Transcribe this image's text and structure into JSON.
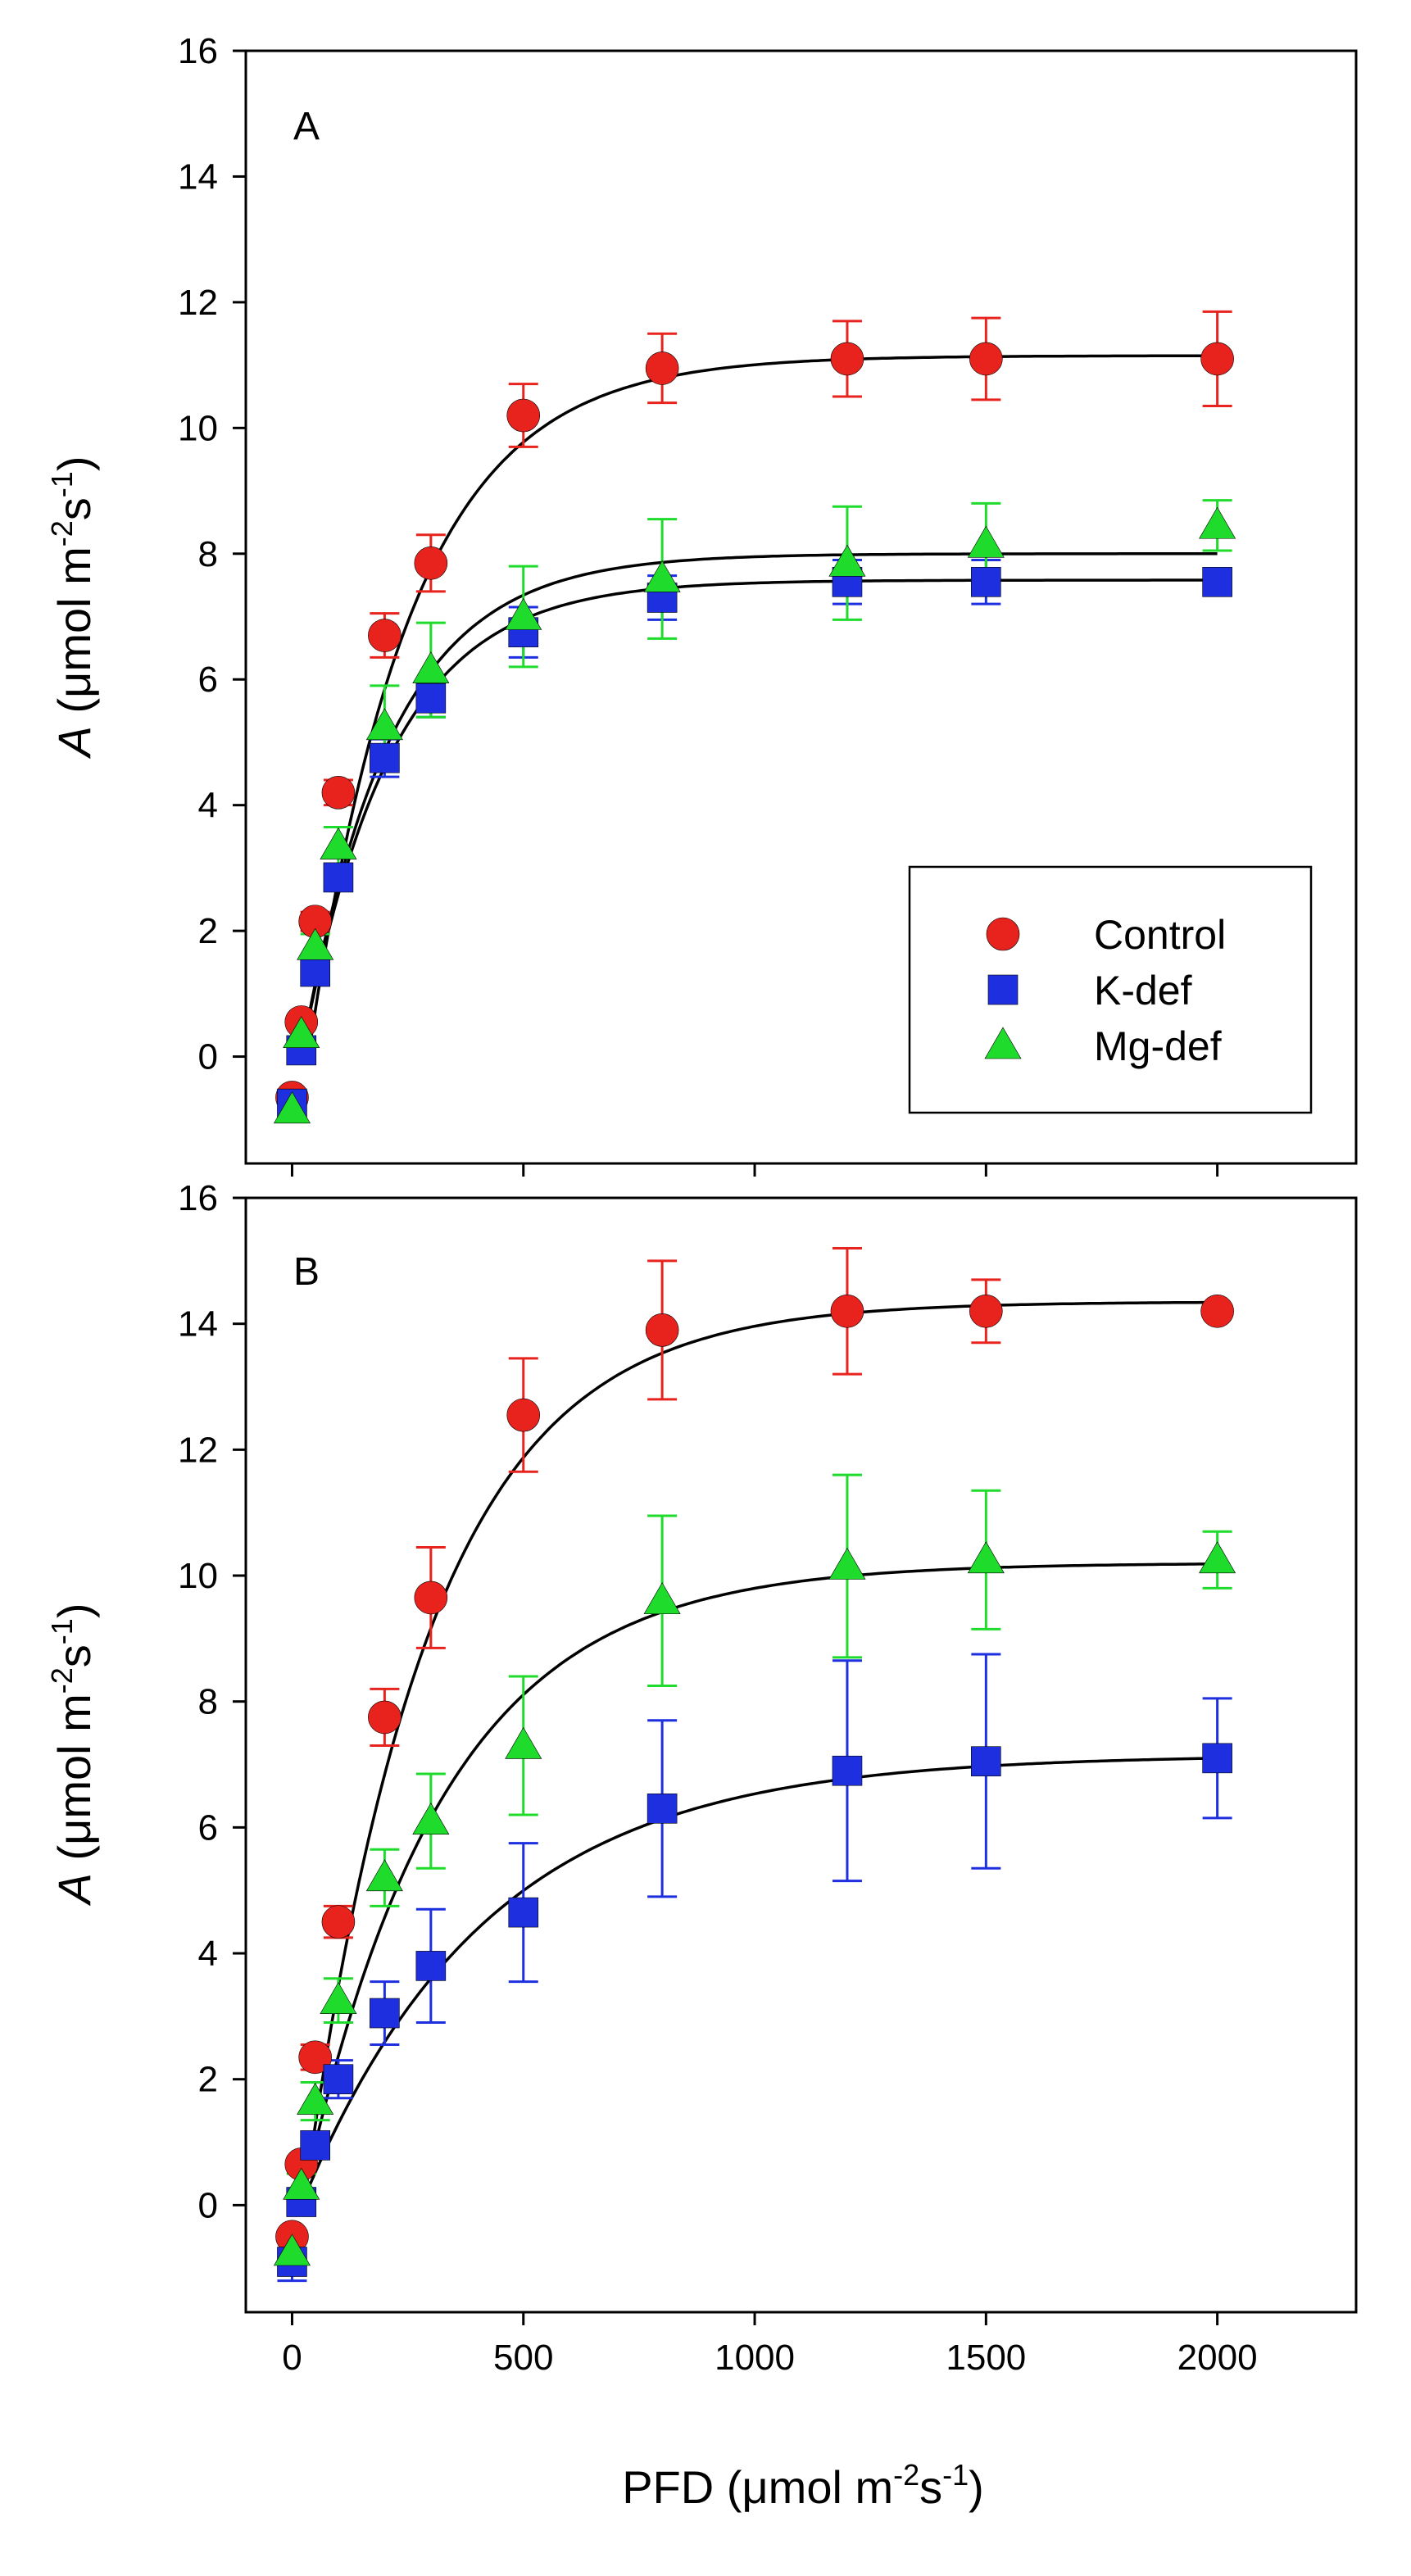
{
  "colors": {
    "control": "#e8231d",
    "kdef": "#1e2fe0",
    "mgdef": "#1fdc2c",
    "fit": "#000000"
  },
  "labels": {
    "xlabel_prefix": "PFD (",
    "ylabel_prefix": " (",
    "mu": "μ",
    "mol_m": "mol m",
    "exp_neg2": "-2",
    "s": "s",
    "exp_neg1": "-1",
    "close_paren": ")"
  },
  "chart_data": [
    {
      "type": "scatter",
      "panel": "A",
      "title": "",
      "xlabel": "PFD (μmol m-2s-1)",
      "ylabel": "A (μmol m-2s-1)",
      "xlim": [
        -100,
        2300
      ],
      "ylim": [
        -1.7,
        16
      ],
      "yticks": [
        0,
        2,
        4,
        6,
        8,
        10,
        12,
        14,
        16
      ],
      "xticks": [
        0,
        500,
        1000,
        1500,
        2000
      ],
      "show_x_tick_labels": false,
      "legend": {
        "position": "bottom-right",
        "entries": [
          "Control",
          "K-def",
          "Mg-def"
        ]
      },
      "series": [
        {
          "name": "Control",
          "key": "control",
          "marker": "circle",
          "x": [
            0,
            20,
            50,
            100,
            200,
            300,
            500,
            800,
            1200,
            1500,
            2000
          ],
          "y": [
            -0.65,
            0.55,
            2.15,
            4.2,
            6.7,
            7.85,
            10.2,
            10.95,
            11.1,
            11.1,
            11.1
          ],
          "err": [
            0.1,
            0.1,
            0.15,
            0.2,
            0.35,
            0.45,
            0.5,
            0.55,
            0.6,
            0.65,
            0.75
          ],
          "fit": {
            "amax": 11.15,
            "k": 0.0045,
            "x0": 35
          }
        },
        {
          "name": "K-def",
          "key": "kdef",
          "marker": "square",
          "x": [
            0,
            20,
            50,
            100,
            200,
            300,
            500,
            800,
            1200,
            1500,
            2000
          ],
          "y": [
            -0.75,
            0.1,
            1.35,
            2.85,
            4.75,
            5.7,
            6.75,
            7.3,
            7.55,
            7.55,
            7.55
          ],
          "err": [
            0.1,
            0.1,
            0.15,
            0.2,
            0.3,
            0.3,
            0.4,
            0.35,
            0.35,
            0.35,
            0.15
          ],
          "fit": {
            "amax": 7.58,
            "k": 0.0052,
            "x0": 20
          }
        },
        {
          "name": "Mg-def",
          "key": "mgdef",
          "marker": "triangle",
          "x": [
            0,
            20,
            50,
            100,
            200,
            300,
            500,
            800,
            1200,
            1500,
            2000
          ],
          "y": [
            -0.85,
            0.35,
            1.75,
            3.35,
            5.25,
            6.15,
            7.0,
            7.6,
            7.85,
            8.15,
            8.45
          ],
          "err": [
            0.1,
            0.15,
            0.2,
            0.3,
            0.65,
            0.75,
            0.8,
            0.95,
            0.9,
            0.65,
            0.4
          ],
          "fit": {
            "amax": 8.0,
            "k": 0.0052,
            "x0": 20
          }
        }
      ]
    },
    {
      "type": "scatter",
      "panel": "B",
      "title": "",
      "xlabel": "PFD (μmol m-2s-1)",
      "ylabel": "A (μmol m-2s-1)",
      "xlim": [
        -100,
        2300
      ],
      "ylim": [
        -1.7,
        16
      ],
      "yticks": [
        0,
        2,
        4,
        6,
        8,
        10,
        12,
        14,
        16
      ],
      "xticks": [
        0,
        500,
        1000,
        1500,
        2000
      ],
      "xticklabels": [
        "0",
        "500",
        "1000",
        "1500",
        "2000"
      ],
      "show_x_tick_labels": true,
      "series": [
        {
          "name": "Control",
          "key": "control",
          "marker": "circle",
          "x": [
            0,
            20,
            50,
            100,
            200,
            300,
            500,
            800,
            1200,
            1500,
            2000
          ],
          "y": [
            -0.5,
            0.65,
            2.35,
            4.5,
            7.75,
            9.65,
            12.55,
            13.9,
            14.2,
            14.2,
            14.2
          ],
          "err": [
            0.1,
            0.1,
            0.2,
            0.25,
            0.45,
            0.8,
            0.9,
            1.1,
            1.0,
            0.5,
            0.1
          ],
          "fit": {
            "amax": 14.35,
            "k": 0.0037,
            "x0": 25
          }
        },
        {
          "name": "K-def",
          "key": "kdef",
          "marker": "square",
          "x": [
            0,
            20,
            50,
            100,
            200,
            300,
            500,
            800,
            1200,
            1500,
            2000
          ],
          "y": [
            -0.9,
            0.05,
            0.95,
            2.0,
            3.05,
            3.8,
            4.65,
            6.3,
            6.9,
            7.05,
            7.1
          ],
          "err": [
            0.3,
            0.15,
            0.2,
            0.3,
            0.5,
            0.9,
            1.1,
            1.4,
            1.75,
            1.7,
            0.95
          ],
          "fit": {
            "amax": 7.15,
            "k": 0.0025,
            "x0": 20
          }
        },
        {
          "name": "Mg-def",
          "key": "mgdef",
          "marker": "triangle",
          "x": [
            0,
            20,
            50,
            100,
            200,
            300,
            500,
            800,
            1200,
            1500,
            2000
          ],
          "y": [
            -0.75,
            0.3,
            1.65,
            3.25,
            5.2,
            6.1,
            7.3,
            9.6,
            10.15,
            10.25,
            10.25
          ],
          "err": [
            0.15,
            0.2,
            0.3,
            0.35,
            0.45,
            0.75,
            1.1,
            1.35,
            1.45,
            1.1,
            0.45
          ],
          "fit": {
            "amax": 10.2,
            "k": 0.0033,
            "x0": 20
          }
        }
      ]
    }
  ]
}
